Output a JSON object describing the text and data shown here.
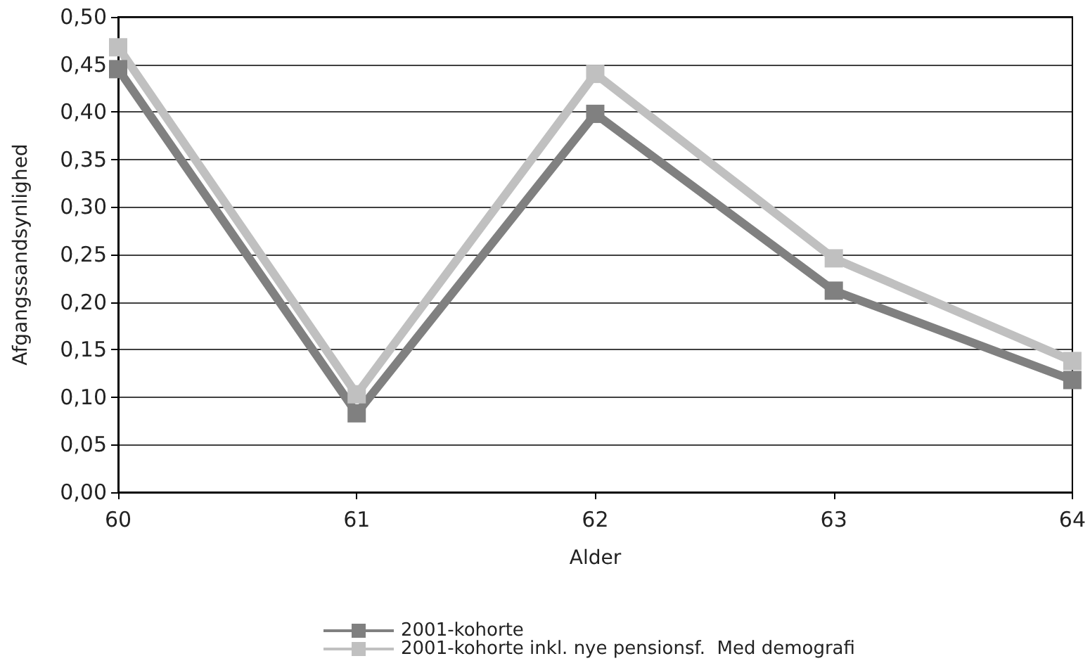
{
  "chart_data": {
    "type": "line",
    "xlabel": "Alder",
    "ylabel": "Afgangssandsynlighed",
    "categories": [
      "60",
      "61",
      "62",
      "63",
      "64"
    ],
    "series": [
      {
        "name": "2001-kohorte",
        "color": "#808080",
        "values": [
          0.445,
          0.083,
          0.398,
          0.212,
          0.118
        ]
      },
      {
        "name": "2001-kohorte inkl. nye pensionsf.  Med demografi",
        "color": "#c0c0c0",
        "values": [
          0.468,
          0.103,
          0.44,
          0.246,
          0.138
        ]
      }
    ],
    "ylim": [
      0,
      0.5
    ],
    "yticks": [
      {
        "value": 0,
        "label": "0,00"
      },
      {
        "value": 0.05,
        "label": "0,05"
      },
      {
        "value": 0.1,
        "label": "0,10"
      },
      {
        "value": 0.15,
        "label": "0,15"
      },
      {
        "value": 0.2,
        "label": "0,20"
      },
      {
        "value": 0.25,
        "label": "0,25"
      },
      {
        "value": 0.3,
        "label": "0,30"
      },
      {
        "value": 0.35,
        "label": "0,35"
      },
      {
        "value": 0.4,
        "label": "0,40"
      },
      {
        "value": 0.45,
        "label": "0,45"
      },
      {
        "value": 0.5,
        "label": "0,50"
      }
    ],
    "grid": "y",
    "legend": "bottom",
    "marker": "square",
    "line_style": "solid"
  }
}
